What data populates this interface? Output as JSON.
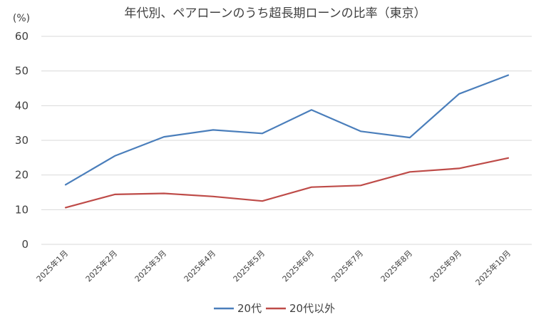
{
  "chart_data": {
    "type": "line",
    "title": "年代別、ペアローンのうち超長期ローンの比率（東京）",
    "ylabel": "(%)",
    "xlabel": "",
    "ylim": [
      0,
      60
    ],
    "yticks": [
      0,
      10,
      20,
      30,
      40,
      50,
      60
    ],
    "grid": true,
    "legend_position": "bottom",
    "categories": [
      "2025年1月",
      "2025年2月",
      "2025年3月",
      "2025年4月",
      "2025年5月",
      "2025年6月",
      "2025年7月",
      "2025年8月",
      "2025年9月",
      "2025年10月"
    ],
    "series": [
      {
        "name": "20代",
        "color": "#4a7ebb",
        "values": [
          17.2,
          25.5,
          31.0,
          33.0,
          32.0,
          38.8,
          32.6,
          30.8,
          43.4,
          48.8
        ]
      },
      {
        "name": "20代以外",
        "color": "#be4b48",
        "values": [
          10.6,
          14.4,
          14.7,
          13.8,
          12.5,
          16.5,
          17.0,
          20.9,
          21.9,
          24.9
        ]
      }
    ]
  }
}
